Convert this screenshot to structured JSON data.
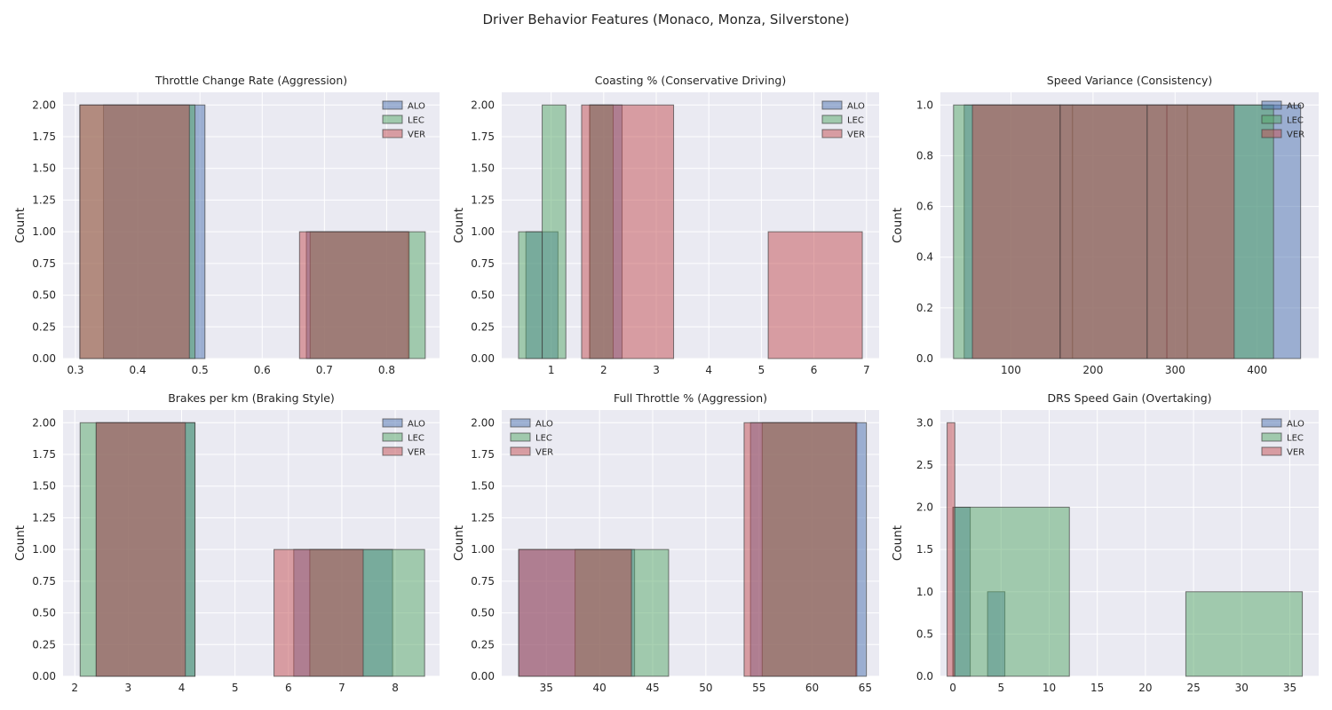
{
  "figure": {
    "suptitle": "Driver Behavior Features (Monaco, Monza, Silverstone)",
    "colors": {
      "ALO": "#4c72b0",
      "LEC": "#55a868",
      "VER": "#c44e52",
      "background": "#eaeaf2",
      "grid": "#ffffff",
      "edge": "#404040"
    }
  },
  "chart_data": [
    {
      "type": "bar",
      "title": "Throttle Change Rate (Aggression)",
      "ylabel": "Count",
      "xlim": [
        0.28,
        0.885
      ],
      "ylim": [
        0,
        2.1
      ],
      "xticks": [
        "0.3",
        "0.4",
        "0.5",
        "0.6",
        "0.7",
        "0.8"
      ],
      "xtick_values": [
        0.3,
        0.4,
        0.5,
        0.6,
        0.7,
        0.8
      ],
      "yticks": [
        "0.00",
        "0.25",
        "0.50",
        "0.75",
        "1.00",
        "1.25",
        "1.50",
        "1.75",
        "2.00"
      ],
      "ytick_values": [
        0,
        0.25,
        0.5,
        0.75,
        1.0,
        1.25,
        1.5,
        1.75,
        2.0
      ],
      "legend_loc": "upper right",
      "series": [
        {
          "name": "ALO",
          "bins": [
            [
              0.345,
              0.508,
              2
            ],
            [
              0.508,
              0.671,
              0
            ],
            [
              0.671,
              0.834,
              1
            ]
          ]
        },
        {
          "name": "LEC",
          "bins": [
            [
              0.307,
              0.492,
              2
            ],
            [
              0.492,
              0.677,
              0
            ],
            [
              0.677,
              0.862,
              1
            ]
          ]
        },
        {
          "name": "VER",
          "bins": [
            [
              0.307,
              0.483,
              2
            ],
            [
              0.483,
              0.66,
              0
            ],
            [
              0.66,
              0.836,
              1
            ]
          ]
        }
      ]
    },
    {
      "type": "bar",
      "title": "Coasting % (Conservative Driving)",
      "ylabel": "Count",
      "xlim": [
        0.06,
        7.24
      ],
      "ylim": [
        0,
        2.1
      ],
      "xticks": [
        "1",
        "2",
        "3",
        "4",
        "5",
        "6",
        "7"
      ],
      "xtick_values": [
        1,
        2,
        3,
        4,
        5,
        6,
        7
      ],
      "yticks": [
        "0.00",
        "0.25",
        "0.50",
        "0.75",
        "1.00",
        "1.25",
        "1.50",
        "1.75",
        "2.00"
      ],
      "ytick_values": [
        0,
        0.25,
        0.5,
        0.75,
        1.0,
        1.25,
        1.5,
        1.75,
        2.0
      ],
      "legend_loc": "upper right",
      "series": [
        {
          "name": "ALO",
          "bins": [
            [
              0.52,
              1.13,
              1
            ],
            [
              1.13,
              1.74,
              0
            ],
            [
              1.74,
              2.35,
              2
            ]
          ]
        },
        {
          "name": "LEC",
          "bins": [
            [
              0.38,
              0.83,
              1
            ],
            [
              0.83,
              1.28,
              2
            ],
            [
              1.28,
              1.73,
              0
            ],
            [
              1.73,
              2.18,
              2
            ]
          ]
        },
        {
          "name": "VER",
          "bins": [
            [
              1.58,
              3.33,
              2
            ],
            [
              3.33,
              5.13,
              0
            ],
            [
              5.13,
              6.92,
              1
            ]
          ]
        }
      ]
    },
    {
      "type": "bar",
      "title": "Speed Variance (Consistency)",
      "ylabel": "Count",
      "xlim": [
        14,
        475
      ],
      "ylim": [
        0,
        1.05
      ],
      "xticks": [
        "100",
        "200",
        "300",
        "400"
      ],
      "xtick_values": [
        100,
        200,
        300,
        400
      ],
      "yticks": [
        "0.0",
        "0.2",
        "0.4",
        "0.6",
        "0.8",
        "1.0"
      ],
      "ytick_values": [
        0,
        0.2,
        0.4,
        0.6,
        0.8,
        1.0
      ],
      "legend_loc": "upper right",
      "series": [
        {
          "name": "ALO",
          "bins": [
            [
              43,
              175,
              1
            ],
            [
              175,
              315,
              1
            ],
            [
              315,
              453,
              1
            ]
          ]
        },
        {
          "name": "LEC",
          "bins": [
            [
              30,
              160,
              1
            ],
            [
              160,
              290,
              1
            ],
            [
              290,
              420,
              1
            ]
          ]
        },
        {
          "name": "VER",
          "bins": [
            [
              53,
              160,
              1
            ],
            [
              160,
              266,
              1
            ],
            [
              266,
              372,
              1
            ]
          ]
        }
      ]
    },
    {
      "type": "bar",
      "title": "Brakes per km (Braking Style)",
      "ylabel": "Count",
      "xlim": [
        1.78,
        8.83
      ],
      "ylim": [
        0,
        2.1
      ],
      "xticks": [
        "2",
        "3",
        "4",
        "5",
        "6",
        "7",
        "8"
      ],
      "xtick_values": [
        2,
        3,
        4,
        5,
        6,
        7,
        8
      ],
      "yticks": [
        "0.00",
        "0.25",
        "0.50",
        "0.75",
        "1.00",
        "1.25",
        "1.50",
        "1.75",
        "2.00"
      ],
      "ytick_values": [
        0,
        0.25,
        0.5,
        0.75,
        1.0,
        1.25,
        1.5,
        1.75,
        2.0
      ],
      "legend_loc": "upper right",
      "series": [
        {
          "name": "ALO",
          "bins": [
            [
              2.4,
              4.25,
              2
            ],
            [
              4.25,
              6.1,
              0
            ],
            [
              6.1,
              7.95,
              1
            ]
          ]
        },
        {
          "name": "LEC",
          "bins": [
            [
              2.1,
              4.25,
              2
            ],
            [
              4.25,
              6.4,
              0
            ],
            [
              6.4,
              8.55,
              1
            ]
          ]
        },
        {
          "name": "VER",
          "bins": [
            [
              2.4,
              4.07,
              2
            ],
            [
              4.07,
              5.73,
              0
            ],
            [
              5.73,
              7.4,
              1
            ]
          ]
        }
      ]
    },
    {
      "type": "bar",
      "title": "Full Throttle % (Aggression)",
      "ylabel": "Count",
      "xlim": [
        30.8,
        66.3
      ],
      "ylim": [
        0,
        2.1
      ],
      "xticks": [
        "35",
        "40",
        "45",
        "50",
        "55",
        "60",
        "65"
      ],
      "xtick_values": [
        35,
        40,
        45,
        50,
        55,
        60,
        65
      ],
      "yticks": [
        "0.00",
        "0.25",
        "0.50",
        "0.75",
        "1.00",
        "1.25",
        "1.50",
        "1.75",
        "2.00"
      ],
      "ytick_values": [
        0,
        0.25,
        0.5,
        0.75,
        1.0,
        1.25,
        1.5,
        1.75,
        2.0
      ],
      "legend_loc": "upper left",
      "series": [
        {
          "name": "ALO",
          "bins": [
            [
              32.4,
              43.3,
              1
            ],
            [
              43.3,
              54.2,
              0
            ],
            [
              54.2,
              65.1,
              2
            ]
          ]
        },
        {
          "name": "LEC",
          "bins": [
            [
              37.7,
              46.5,
              1
            ],
            [
              46.5,
              55.3,
              0
            ],
            [
              55.3,
              64.1,
              2
            ]
          ]
        },
        {
          "name": "VER",
          "bins": [
            [
              32.4,
              43.0,
              1
            ],
            [
              43.0,
              53.6,
              0
            ],
            [
              53.6,
              64.2,
              2
            ]
          ]
        }
      ]
    },
    {
      "type": "bar",
      "title": "DRS Speed Gain (Overtaking)",
      "ylabel": "Count",
      "xlim": [
        -1.3,
        38.0
      ],
      "ylim": [
        0,
        3.15
      ],
      "xticks": [
        "0",
        "5",
        "10",
        "15",
        "20",
        "25",
        "30",
        "35"
      ],
      "xtick_values": [
        0,
        5,
        10,
        15,
        20,
        25,
        30,
        35
      ],
      "yticks": [
        "0.0",
        "0.5",
        "1.0",
        "1.5",
        "2.0",
        "2.5",
        "3.0"
      ],
      "ytick_values": [
        0,
        0.5,
        1.0,
        1.5,
        2.0,
        2.5,
        3.0
      ],
      "legend_loc": "upper right",
      "series": [
        {
          "name": "ALO",
          "bins": [
            [
              0.0,
              1.8,
              2
            ],
            [
              1.8,
              3.6,
              0
            ],
            [
              3.6,
              5.4,
              1
            ]
          ]
        },
        {
          "name": "LEC",
          "bins": [
            [
              0.0,
              12.1,
              2
            ],
            [
              12.1,
              24.2,
              0
            ],
            [
              24.2,
              36.3,
              1
            ]
          ]
        },
        {
          "name": "VER",
          "bins": [
            [
              -0.6,
              0.2,
              3
            ]
          ]
        }
      ]
    }
  ]
}
